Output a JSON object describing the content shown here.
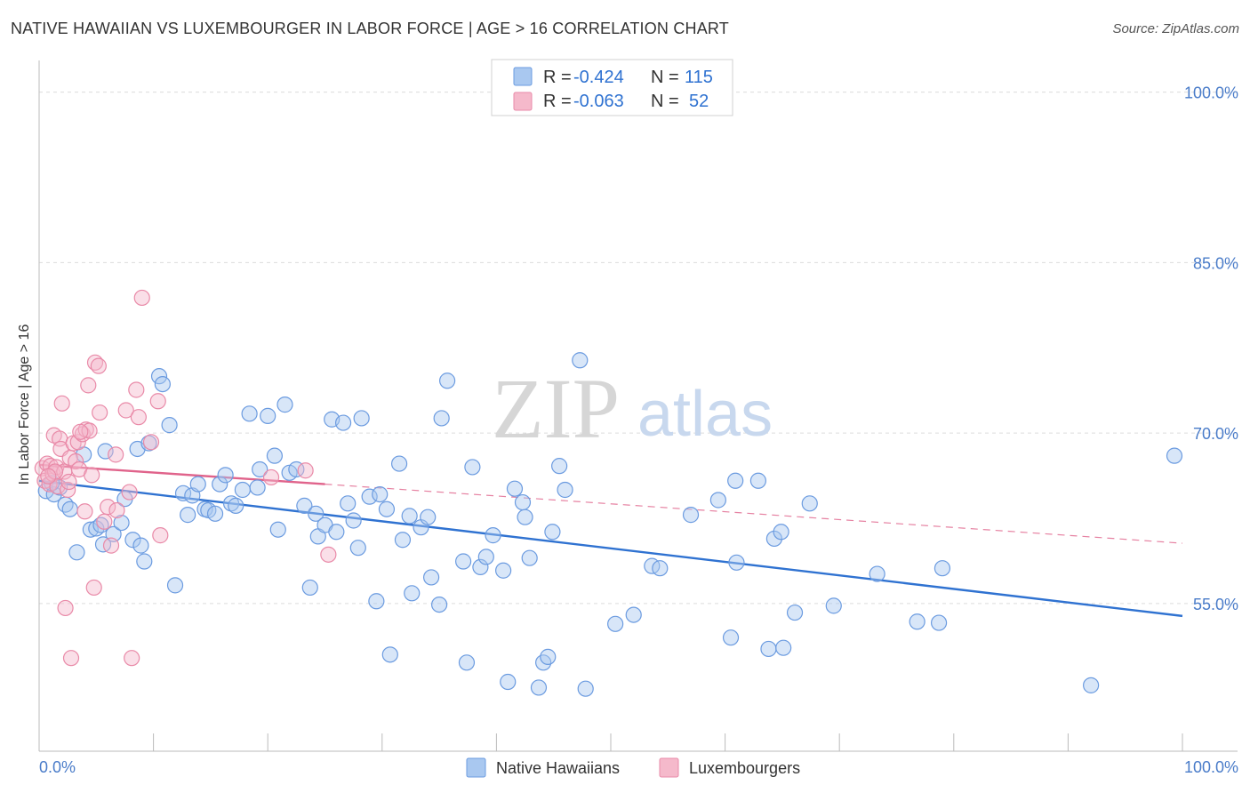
{
  "title": "NATIVE HAWAIIAN VS LUXEMBOURGER IN LABOR FORCE | AGE > 16 CORRELATION CHART",
  "source": "Source: ZipAtlas.com",
  "watermark": {
    "zip": "ZIP",
    "atlas": "atlas"
  },
  "colors": {
    "blue_fill": "#a9c8f0",
    "blue_stroke": "#6b9be0",
    "blue_line": "#2f72d1",
    "pink_fill": "#f5b9cb",
    "pink_stroke": "#e98aa8",
    "pink_line": "#e0638b",
    "value_blue": "#2f72d1",
    "grid": "#dcdcdc"
  },
  "stats": [
    {
      "r_label": "R =",
      "r_value": "-0.424",
      "n_label": "N =",
      "n_value": "115"
    },
    {
      "r_label": "R =",
      "r_value": "-0.063",
      "n_label": "N =",
      "n_value": "52"
    }
  ],
  "legend": [
    "Native Hawaiians",
    "Luxembourgers"
  ],
  "chart_data": {
    "type": "scatter",
    "xlabel": "",
    "ylabel": "In Labor Force | Age > 16",
    "xlim": [
      0,
      100
    ],
    "ylim": [
      42,
      102
    ],
    "x_tick_labels": [
      {
        "value": 0,
        "label": "0.0%"
      },
      {
        "value": 100,
        "label": "100.0%"
      }
    ],
    "y_tick_labels": [
      {
        "value": 55,
        "label": "55.0%"
      },
      {
        "value": 70,
        "label": "70.0%"
      },
      {
        "value": 85,
        "label": "85.0%"
      },
      {
        "value": 100,
        "label": "100.0%"
      }
    ],
    "grid": true,
    "legend_position": "bottom-center",
    "series": [
      {
        "name": "Native Hawaiians",
        "color": "#a9c8f0",
        "r": -0.424,
        "n": 115,
        "trend": {
          "x": [
            0,
            100
          ],
          "y": [
            65.8,
            53.9
          ]
        },
        "points": [
          [
            0.6,
            64.9
          ],
          [
            1.3,
            64.6
          ],
          [
            1.8,
            65.2
          ],
          [
            2.3,
            63.7
          ],
          [
            2.7,
            63.3
          ],
          [
            3.3,
            59.5
          ],
          [
            3.9,
            68.1
          ],
          [
            4.5,
            61.5
          ],
          [
            5.0,
            61.6
          ],
          [
            5.4,
            61.9
          ],
          [
            5.6,
            60.2
          ],
          [
            5.8,
            68.4
          ],
          [
            6.5,
            61.1
          ],
          [
            7.2,
            62.1
          ],
          [
            7.5,
            64.2
          ],
          [
            8.2,
            60.6
          ],
          [
            8.6,
            68.6
          ],
          [
            8.9,
            60.1
          ],
          [
            9.2,
            58.7
          ],
          [
            9.6,
            69.1
          ],
          [
            10.5,
            75.0
          ],
          [
            10.8,
            74.3
          ],
          [
            11.4,
            70.7
          ],
          [
            11.9,
            56.6
          ],
          [
            12.6,
            64.7
          ],
          [
            13.0,
            62.8
          ],
          [
            13.4,
            64.5
          ],
          [
            13.9,
            65.5
          ],
          [
            14.5,
            63.3
          ],
          [
            14.8,
            63.2
          ],
          [
            15.4,
            62.9
          ],
          [
            15.8,
            65.5
          ],
          [
            16.3,
            66.3
          ],
          [
            16.8,
            63.8
          ],
          [
            17.2,
            63.6
          ],
          [
            17.8,
            65.0
          ],
          [
            18.4,
            71.7
          ],
          [
            19.1,
            65.2
          ],
          [
            19.3,
            66.8
          ],
          [
            20.0,
            71.5
          ],
          [
            20.6,
            68.0
          ],
          [
            20.9,
            61.5
          ],
          [
            21.5,
            72.5
          ],
          [
            21.9,
            66.5
          ],
          [
            22.5,
            66.8
          ],
          [
            23.2,
            63.6
          ],
          [
            23.7,
            56.4
          ],
          [
            24.2,
            62.9
          ],
          [
            24.4,
            60.9
          ],
          [
            25.0,
            61.9
          ],
          [
            25.6,
            71.2
          ],
          [
            26.0,
            61.3
          ],
          [
            26.6,
            70.9
          ],
          [
            27.0,
            63.8
          ],
          [
            27.5,
            62.3
          ],
          [
            27.9,
            59.9
          ],
          [
            28.2,
            71.3
          ],
          [
            28.9,
            64.4
          ],
          [
            29.5,
            55.2
          ],
          [
            29.8,
            64.6
          ],
          [
            30.4,
            63.3
          ],
          [
            30.7,
            50.5
          ],
          [
            31.5,
            67.3
          ],
          [
            31.8,
            60.6
          ],
          [
            32.4,
            62.7
          ],
          [
            32.6,
            55.9
          ],
          [
            33.4,
            61.7
          ],
          [
            34.0,
            62.6
          ],
          [
            34.3,
            57.3
          ],
          [
            35.0,
            54.9
          ],
          [
            35.7,
            74.6
          ],
          [
            35.2,
            71.3
          ],
          [
            37.1,
            58.7
          ],
          [
            37.4,
            49.8
          ],
          [
            37.9,
            67.0
          ],
          [
            38.6,
            58.2
          ],
          [
            39.1,
            59.1
          ],
          [
            39.7,
            61.0
          ],
          [
            40.6,
            57.9
          ],
          [
            41.0,
            48.1
          ],
          [
            41.6,
            65.1
          ],
          [
            42.3,
            63.9
          ],
          [
            42.5,
            62.6
          ],
          [
            42.9,
            59.0
          ],
          [
            43.7,
            47.6
          ],
          [
            44.1,
            49.8
          ],
          [
            44.5,
            50.3
          ],
          [
            44.9,
            61.3
          ],
          [
            45.5,
            67.1
          ],
          [
            46.0,
            65.0
          ],
          [
            47.3,
            76.4
          ],
          [
            47.8,
            47.5
          ],
          [
            50.4,
            53.2
          ],
          [
            52.0,
            54.0
          ],
          [
            53.6,
            58.3
          ],
          [
            54.3,
            58.1
          ],
          [
            57.0,
            62.8
          ],
          [
            59.4,
            64.1
          ],
          [
            60.5,
            52.0
          ],
          [
            60.9,
            65.8
          ],
          [
            61.0,
            58.6
          ],
          [
            62.9,
            65.8
          ],
          [
            63.8,
            51.0
          ],
          [
            64.3,
            60.7
          ],
          [
            64.9,
            61.3
          ],
          [
            65.1,
            51.1
          ],
          [
            66.1,
            54.2
          ],
          [
            67.4,
            63.8
          ],
          [
            69.5,
            54.8
          ],
          [
            73.3,
            57.6
          ],
          [
            76.8,
            53.4
          ],
          [
            78.7,
            53.3
          ],
          [
            79.0,
            58.1
          ],
          [
            92.0,
            47.8
          ],
          [
            99.3,
            68.0
          ],
          [
            1.1,
            65.6
          ]
        ]
      },
      {
        "name": "Luxembourgers",
        "color": "#f5b9cb",
        "r": -0.063,
        "n": 52,
        "trend": {
          "x": [
            0,
            25
          ],
          "y": [
            67.2,
            65.5
          ]
        },
        "trend_extension": {
          "x": [
            25,
            100
          ],
          "y": [
            65.5,
            60.3
          ]
        },
        "points": [
          [
            0.3,
            66.9
          ],
          [
            0.5,
            65.8
          ],
          [
            0.7,
            67.3
          ],
          [
            0.9,
            65.5
          ],
          [
            1.0,
            67.1
          ],
          [
            1.2,
            66.4
          ],
          [
            1.3,
            69.8
          ],
          [
            1.5,
            67.0
          ],
          [
            1.6,
            65.3
          ],
          [
            1.8,
            69.5
          ],
          [
            1.9,
            68.6
          ],
          [
            2.0,
            72.6
          ],
          [
            2.2,
            66.6
          ],
          [
            2.3,
            54.6
          ],
          [
            2.5,
            65.0
          ],
          [
            2.7,
            67.8
          ],
          [
            2.8,
            50.2
          ],
          [
            3.0,
            69.1
          ],
          [
            3.2,
            67.5
          ],
          [
            3.4,
            69.2
          ],
          [
            3.5,
            66.8
          ],
          [
            3.8,
            69.9
          ],
          [
            4.0,
            63.1
          ],
          [
            4.1,
            70.3
          ],
          [
            4.3,
            74.2
          ],
          [
            4.4,
            70.2
          ],
          [
            4.6,
            66.3
          ],
          [
            4.8,
            56.4
          ],
          [
            4.9,
            76.2
          ],
          [
            5.2,
            75.9
          ],
          [
            5.3,
            71.8
          ],
          [
            5.7,
            62.2
          ],
          [
            6.0,
            63.5
          ],
          [
            6.3,
            60.1
          ],
          [
            6.7,
            68.1
          ],
          [
            6.8,
            63.2
          ],
          [
            7.6,
            72.0
          ],
          [
            7.9,
            64.8
          ],
          [
            8.1,
            50.2
          ],
          [
            8.5,
            73.8
          ],
          [
            8.7,
            71.4
          ],
          [
            9.0,
            81.9
          ],
          [
            9.8,
            69.2
          ],
          [
            10.4,
            72.8
          ],
          [
            10.6,
            61.0
          ],
          [
            20.3,
            66.1
          ],
          [
            23.3,
            66.7
          ],
          [
            25.3,
            59.3
          ],
          [
            1.4,
            66.6
          ],
          [
            2.6,
            65.7
          ],
          [
            3.6,
            70.1
          ],
          [
            0.8,
            66.2
          ]
        ]
      }
    ]
  }
}
